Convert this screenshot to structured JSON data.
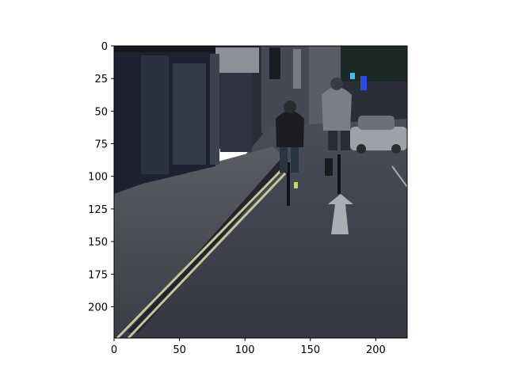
{
  "figure": {
    "background": "#ffffff",
    "axes": {
      "x_range": [
        0,
        224
      ],
      "y_range": [
        0,
        224
      ],
      "y_inverted": true,
      "x_ticks": [
        0,
        50,
        100,
        150,
        200
      ],
      "y_ticks": [
        0,
        25,
        50,
        75,
        100,
        125,
        150,
        175,
        200
      ],
      "x_tick_labels": [
        "0",
        "50",
        "100",
        "150",
        "200"
      ],
      "y_tick_labels": [
        "0",
        "25",
        "50",
        "75",
        "100",
        "125",
        "150",
        "175",
        "200"
      ]
    },
    "image": {
      "scene": "street-with-cyclists",
      "elements": [
        "storefront",
        "sidewalk",
        "double-yellow-lines",
        "cyclist-left",
        "cyclist-right",
        "silver-car",
        "lane-arrow",
        "buildings"
      ],
      "colors": {
        "road": "#3a3d4a",
        "sidewalk": "#4a4d5a",
        "storefront": "#1e2230",
        "sky": "#1b2a26",
        "lane_line": "#c9c49a",
        "arrow": "#a9adb4",
        "car": "#9ea2a8"
      }
    }
  }
}
